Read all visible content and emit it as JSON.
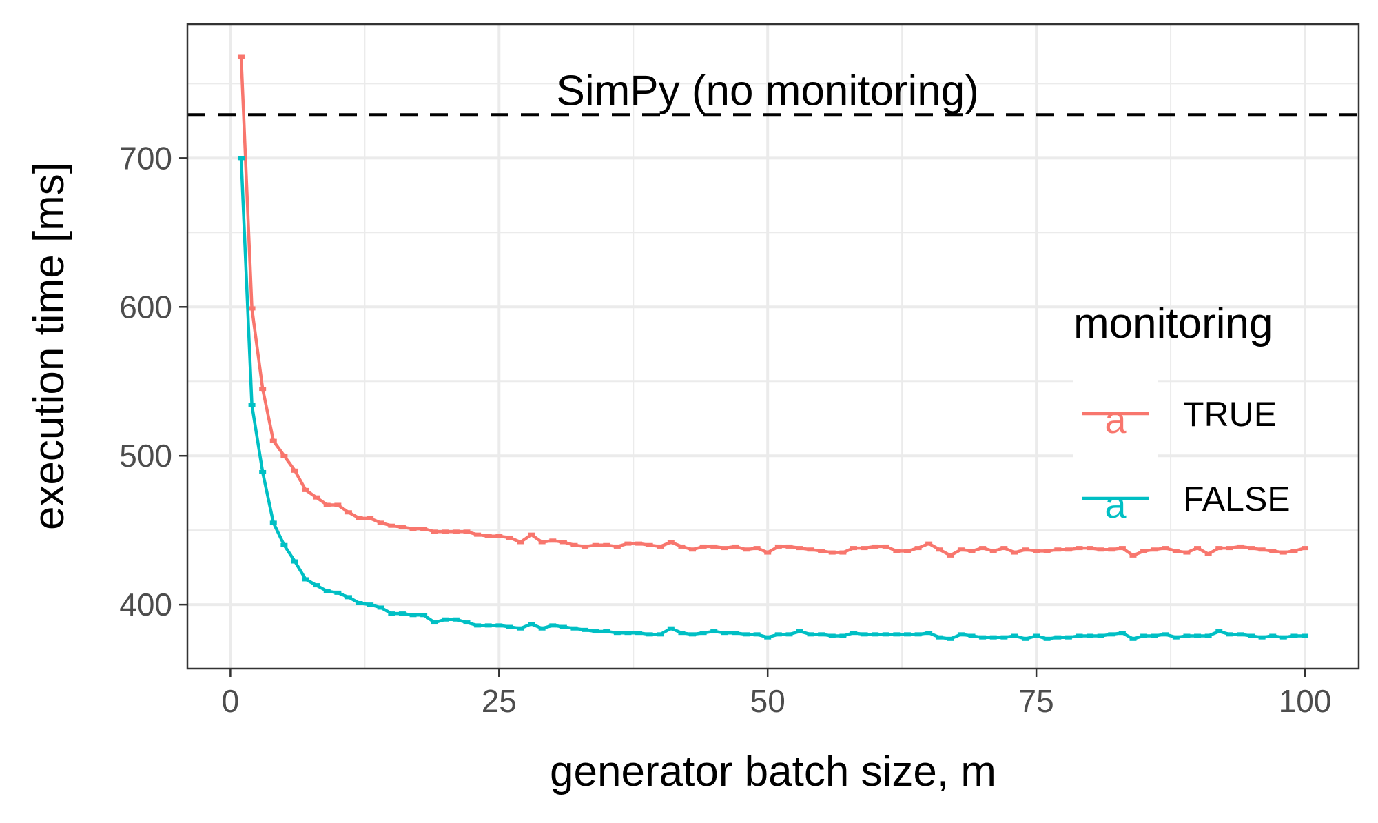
{
  "chart_data": {
    "type": "line",
    "title": "",
    "xlabel": "generator batch size, m",
    "ylabel": "execution time [ms]",
    "xlim": [
      -4,
      105
    ],
    "ylim": [
      357,
      790
    ],
    "x_ticks": [
      0,
      25,
      50,
      75,
      100
    ],
    "x_tick_labels": [
      "0",
      "25",
      "50",
      "75",
      "100"
    ],
    "y_ticks": [
      400,
      500,
      600,
      700
    ],
    "y_tick_labels": [
      "400",
      "500",
      "600",
      "700"
    ],
    "grid": true,
    "legend": {
      "title": "monitoring",
      "placement": "right",
      "key_glyph": "a"
    },
    "reference_line": {
      "y": 729,
      "style": "dashed",
      "label": "SimPy (no monitoring)"
    },
    "series": [
      {
        "name": "TRUE",
        "color": "#F8766D",
        "x": [
          1,
          2,
          3,
          4,
          5,
          6,
          7,
          8,
          9,
          10,
          11,
          12,
          13,
          14,
          15,
          16,
          17,
          18,
          19,
          20,
          21,
          22,
          23,
          24,
          25,
          26,
          27,
          28,
          29,
          30,
          31,
          32,
          33,
          34,
          35,
          36,
          37,
          38,
          39,
          40,
          41,
          42,
          43,
          44,
          45,
          46,
          47,
          48,
          49,
          50,
          51,
          52,
          53,
          54,
          55,
          56,
          57,
          58,
          59,
          60,
          61,
          62,
          63,
          64,
          65,
          66,
          67,
          68,
          69,
          70,
          71,
          72,
          73,
          74,
          75,
          76,
          77,
          78,
          79,
          80,
          81,
          82,
          83,
          84,
          85,
          86,
          87,
          88,
          89,
          90,
          91,
          92,
          93,
          94,
          95,
          96,
          97,
          98,
          99,
          100
        ],
        "y": [
          768,
          599,
          545,
          510,
          500,
          490,
          477,
          472,
          467,
          467,
          462,
          458,
          458,
          455,
          453,
          452,
          451,
          451,
          449,
          449,
          449,
          449,
          447,
          446,
          446,
          445,
          442,
          447,
          442,
          443,
          442,
          440,
          439,
          440,
          440,
          439,
          441,
          441,
          440,
          439,
          442,
          439,
          437,
          439,
          439,
          438,
          439,
          437,
          438,
          435,
          439,
          439,
          438,
          437,
          436,
          435,
          435,
          438,
          438,
          439,
          439,
          436,
          436,
          438,
          441,
          437,
          433,
          437,
          436,
          438,
          436,
          438,
          435,
          437,
          436,
          436,
          437,
          437,
          438,
          438,
          437,
          437,
          438,
          433,
          436,
          437,
          438,
          436,
          435,
          438,
          434,
          438,
          438,
          439,
          438,
          437,
          436,
          435,
          436,
          438
        ]
      },
      {
        "name": "FALSE",
        "color": "#00BFC4",
        "x": [
          1,
          2,
          3,
          4,
          5,
          6,
          7,
          8,
          9,
          10,
          11,
          12,
          13,
          14,
          15,
          16,
          17,
          18,
          19,
          20,
          21,
          22,
          23,
          24,
          25,
          26,
          27,
          28,
          29,
          30,
          31,
          32,
          33,
          34,
          35,
          36,
          37,
          38,
          39,
          40,
          41,
          42,
          43,
          44,
          45,
          46,
          47,
          48,
          49,
          50,
          51,
          52,
          53,
          54,
          55,
          56,
          57,
          58,
          59,
          60,
          61,
          62,
          63,
          64,
          65,
          66,
          67,
          68,
          69,
          70,
          71,
          72,
          73,
          74,
          75,
          76,
          77,
          78,
          79,
          80,
          81,
          82,
          83,
          84,
          85,
          86,
          87,
          88,
          89,
          90,
          91,
          92,
          93,
          94,
          95,
          96,
          97,
          98,
          99,
          100
        ],
        "y": [
          700,
          534,
          489,
          455,
          440,
          429,
          417,
          413,
          409,
          408,
          405,
          401,
          400,
          398,
          394,
          394,
          393,
          393,
          388,
          390,
          390,
          388,
          386,
          386,
          386,
          385,
          384,
          387,
          384,
          386,
          385,
          384,
          383,
          382,
          382,
          381,
          381,
          381,
          380,
          380,
          384,
          381,
          380,
          381,
          382,
          381,
          381,
          380,
          380,
          378,
          380,
          380,
          382,
          380,
          380,
          379,
          379,
          381,
          380,
          380,
          380,
          380,
          380,
          380,
          381,
          378,
          377,
          380,
          379,
          378,
          378,
          378,
          379,
          377,
          379,
          377,
          378,
          378,
          379,
          379,
          379,
          380,
          381,
          377,
          379,
          379,
          380,
          378,
          379,
          379,
          379,
          382,
          380,
          380,
          379,
          378,
          379,
          378,
          379,
          379
        ]
      }
    ]
  }
}
